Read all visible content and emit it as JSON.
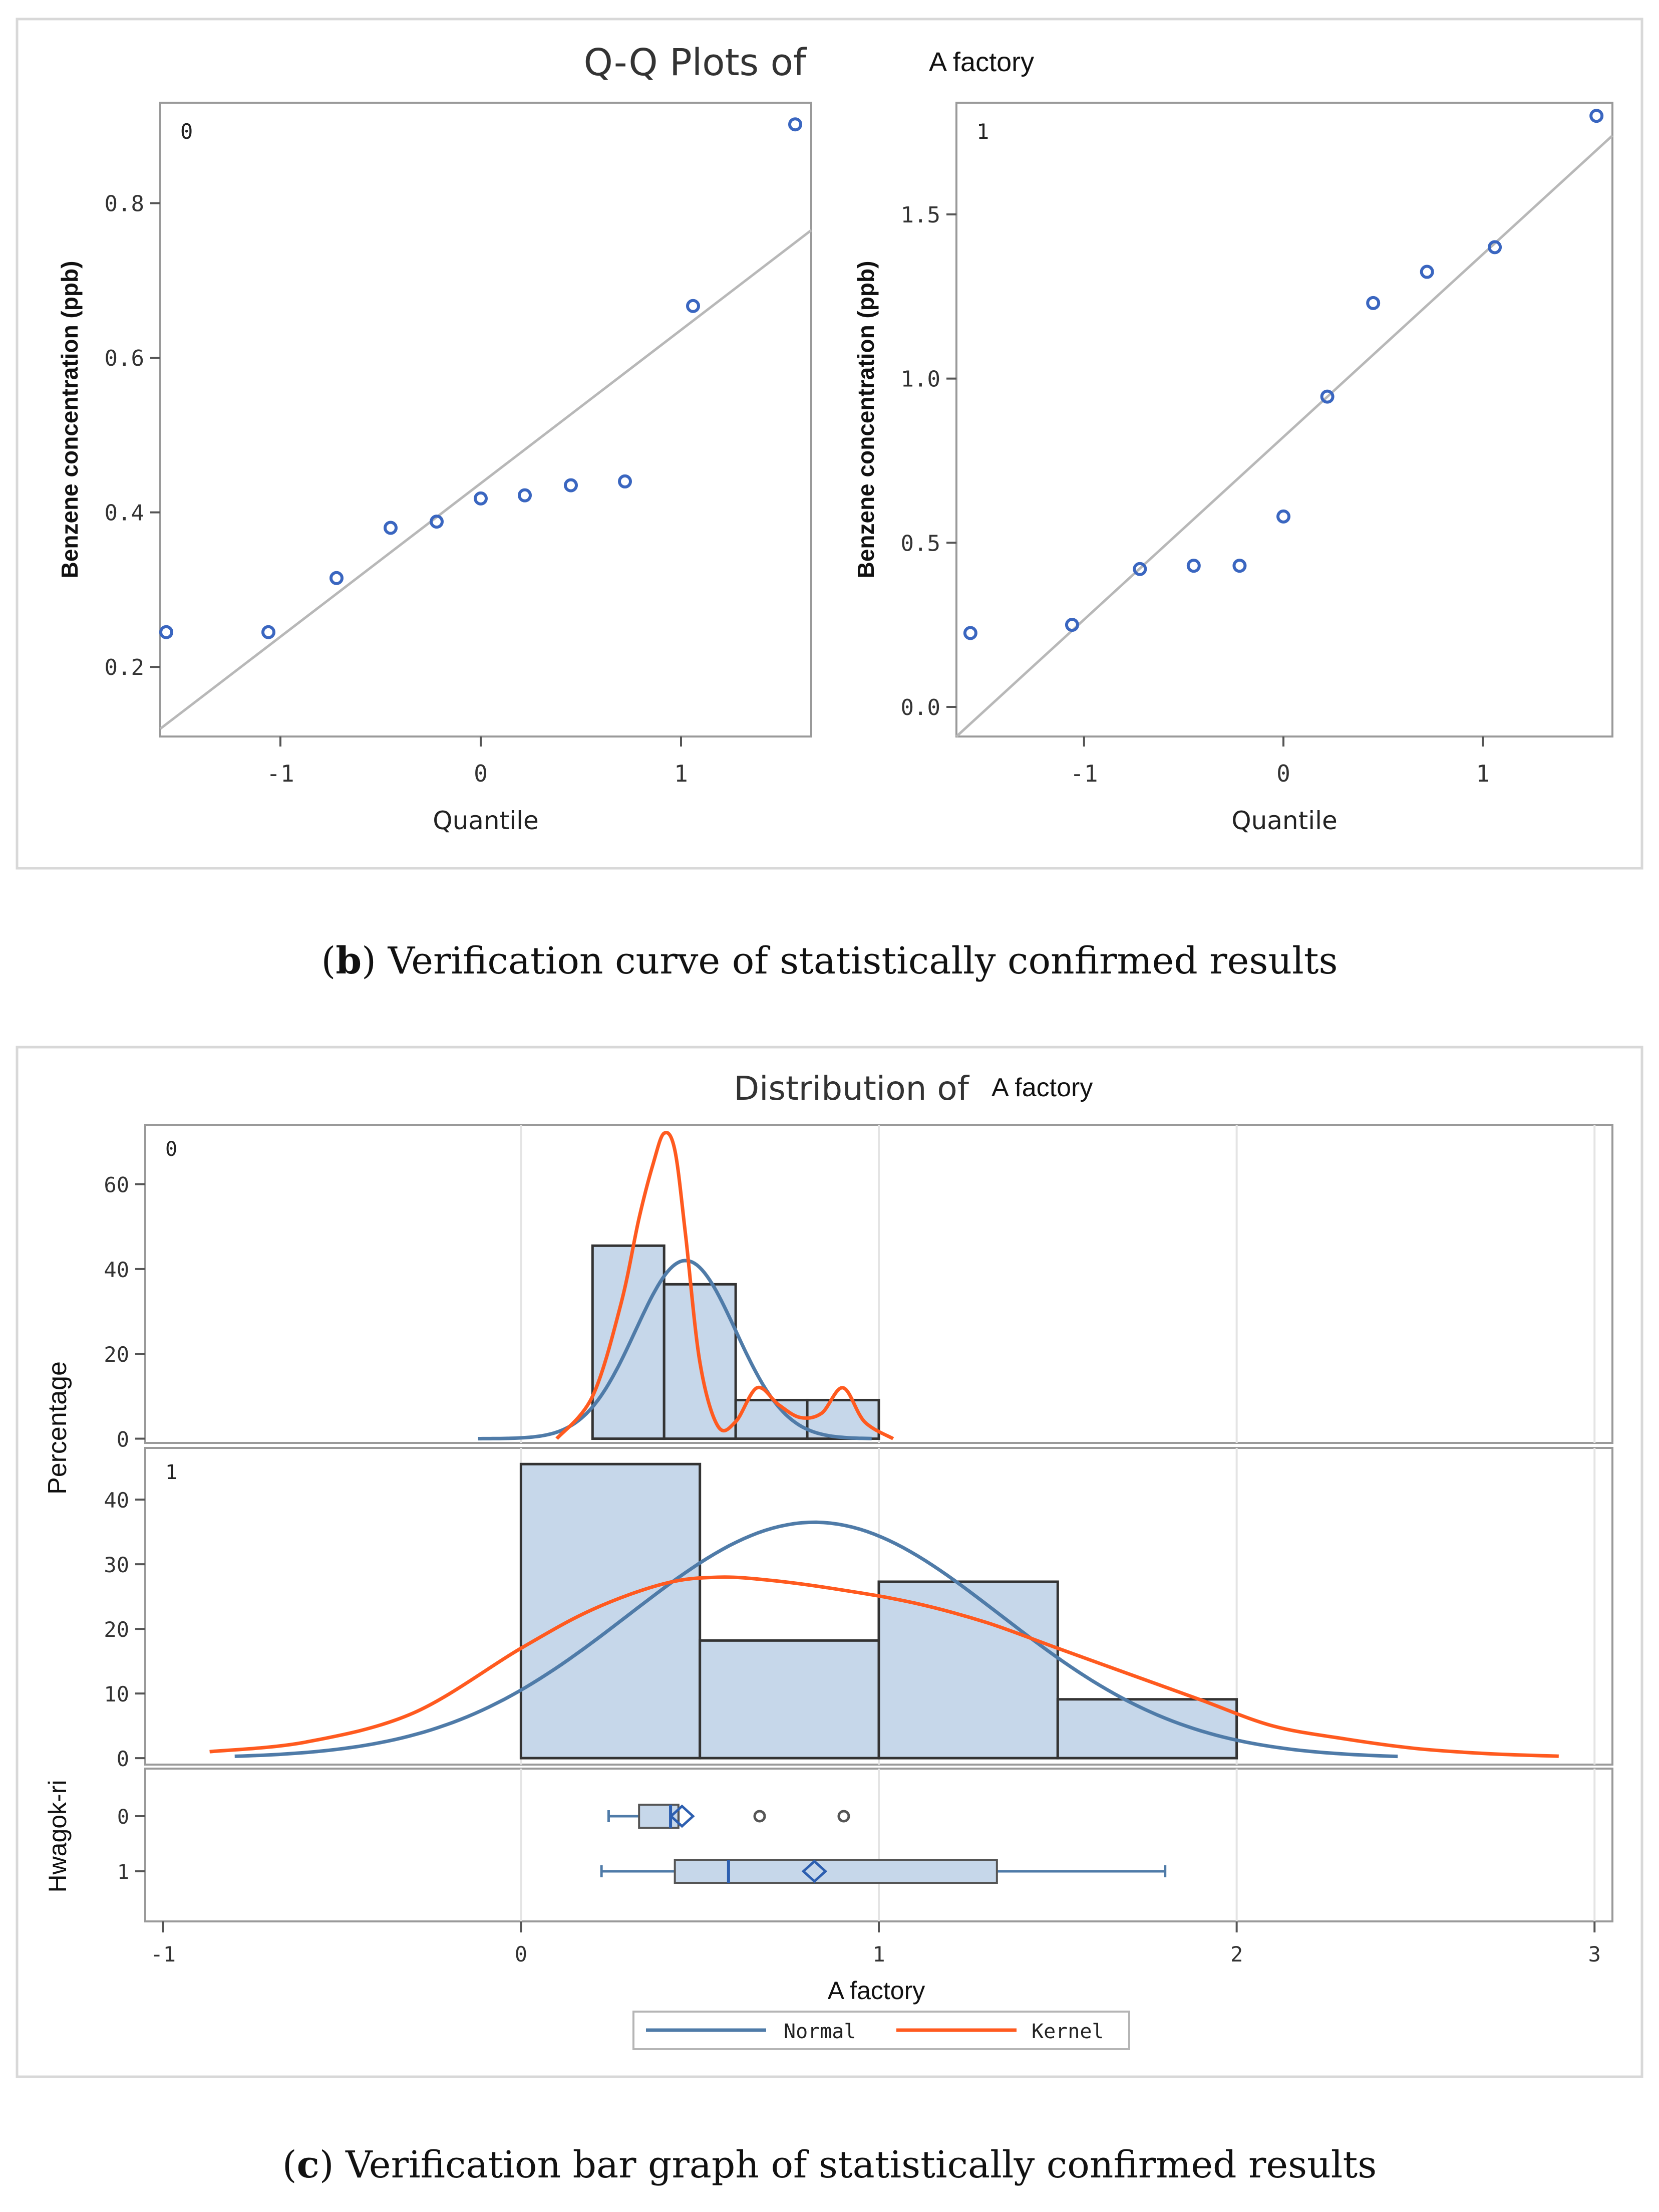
{
  "captions": {
    "b": {
      "letter": "b",
      "text": "Verification curve of statistically confirmed results"
    },
    "c": {
      "letter": "c",
      "text": "Verification bar graph of statistically confirmed results"
    }
  },
  "chart_data": [
    {
      "type": "scatter",
      "title": "Q-Q Plots of",
      "title_suffix": "A factory",
      "xlabel": "Quantile",
      "ylabel": "Benzene concentration (ppb)",
      "panels": [
        {
          "label": "0",
          "xlim": [
            -1.6,
            1.65
          ],
          "ylim": [
            0.11,
            0.93
          ],
          "xticks": [
            -1,
            0,
            1
          ],
          "yticks": [
            0.2,
            0.4,
            0.6,
            0.8
          ],
          "ytick_labels": [
            "0.2",
            "0.4",
            "0.6",
            "0.8"
          ],
          "points": {
            "x": [
              -1.57,
              -1.06,
              -0.72,
              -0.45,
              -0.22,
              0,
              0.22,
              0.45,
              0.72,
              1.06,
              1.57
            ],
            "y": [
              0.245,
              0.245,
              0.315,
              0.38,
              0.388,
              0.418,
              0.422,
              0.435,
              0.44,
              0.667,
              0.902
            ]
          },
          "ref_line": {
            "x": [
              -1.6,
              1.65
            ],
            "y": [
              0.12,
              0.765
            ]
          }
        },
        {
          "label": "1",
          "xlim": [
            -1.64,
            1.65
          ],
          "ylim": [
            -0.09,
            1.84
          ],
          "xticks": [
            -1,
            0,
            1
          ],
          "yticks": [
            0,
            0.5,
            1.0,
            1.5
          ],
          "ytick_labels": [
            "0.0",
            "0.5",
            "1.0",
            "1.5"
          ],
          "points": {
            "x": [
              -1.57,
              -1.06,
              -0.72,
              -0.45,
              -0.22,
              0,
              0.22,
              0.45,
              0.72,
              1.06,
              1.57
            ],
            "y": [
              0.225,
              0.25,
              0.42,
              0.43,
              0.43,
              0.58,
              0.945,
              1.23,
              1.325,
              1.4,
              1.8
            ]
          },
          "ref_line": {
            "x": [
              -1.64,
              1.65
            ],
            "y": [
              -0.09,
              1.74
            ]
          }
        }
      ]
    },
    {
      "type": "bar",
      "subtype": "histogram",
      "title": "Distribution of",
      "title_suffix": "A factory",
      "xlabel": "A factory",
      "ylabel": "Percentage",
      "xlim": [
        -1.05,
        3.05
      ],
      "xticks": [
        -1,
        0,
        1,
        2,
        3
      ],
      "legend": {
        "position": "bottom",
        "entries": [
          "Normal",
          "Kernel"
        ]
      },
      "colors": {
        "normal": "#4f7ba8",
        "kernel": "#ff5a1f",
        "bar_fill": "#c6d7ea",
        "bar_edge": "#333333"
      },
      "panels": [
        {
          "label": "0",
          "ylim": [
            -1,
            74
          ],
          "yticks": [
            0,
            20,
            40,
            60
          ],
          "bins": [
            {
              "start": 0.2,
              "end": 0.4,
              "value": 45.5
            },
            {
              "start": 0.4,
              "end": 0.6,
              "value": 36.4
            },
            {
              "start": 0.6,
              "end": 0.8,
              "value": 9.1
            },
            {
              "start": 0.8,
              "end": 1.0,
              "value": 9.1
            }
          ],
          "normal": {
            "mean": 0.46,
            "sd": 0.14,
            "peak": 42,
            "range": [
              -0.12,
              0.98
            ]
          },
          "kernel": {
            "x": [
              0.1,
              0.2,
              0.28,
              0.33,
              0.37,
              0.4,
              0.43,
              0.46,
              0.5,
              0.55,
              0.6,
              0.66,
              0.72,
              0.78,
              0.84,
              0.9,
              0.96,
              1.04
            ],
            "y": [
              0,
              10,
              32,
              52,
              65,
              72,
              68,
              48,
              18,
              3,
              4,
              12,
              8,
              5,
              6,
              12,
              4,
              0
            ]
          }
        },
        {
          "label": "1",
          "ylim": [
            -1,
            48
          ],
          "yticks": [
            0,
            10,
            20,
            30,
            40
          ],
          "bins": [
            {
              "start": 0.0,
              "end": 0.5,
              "value": 45.5
            },
            {
              "start": 0.5,
              "end": 1.0,
              "value": 18.2
            },
            {
              "start": 1.0,
              "end": 1.5,
              "value": 27.3
            },
            {
              "start": 1.5,
              "end": 2.0,
              "value": 9.1
            }
          ],
          "normal": {
            "mean": 0.82,
            "sd": 0.52,
            "peak": 36.5,
            "range": [
              -0.8,
              2.45
            ]
          },
          "kernel": {
            "x": [
              -0.87,
              -0.6,
              -0.3,
              0.0,
              0.2,
              0.4,
              0.55,
              0.7,
              0.9,
              1.1,
              1.3,
              1.5,
              1.7,
              1.9,
              2.1,
              2.3,
              2.5,
              2.7,
              2.9
            ],
            "y": [
              1,
              2.5,
              7,
              17,
              23,
              27,
              28,
              27.5,
              26,
              24,
              21,
              17,
              13,
              9,
              5,
              3,
              1.5,
              0.7,
              0.3
            ]
          }
        }
      ],
      "boxplot": {
        "ylabel": "Hwagok-ri",
        "categories": [
          "0",
          "1"
        ],
        "boxes": [
          {
            "category": "0",
            "whisker_low": 0.245,
            "q1": 0.33,
            "median": 0.418,
            "mean": 0.45,
            "q3": 0.44,
            "whisker_high": 0.44,
            "outliers": [
              0.667,
              0.902
            ]
          },
          {
            "category": "1",
            "whisker_low": 0.225,
            "q1": 0.43,
            "median": 0.58,
            "mean": 0.82,
            "q3": 1.33,
            "whisker_high": 1.8,
            "outliers": []
          }
        ]
      }
    }
  ]
}
